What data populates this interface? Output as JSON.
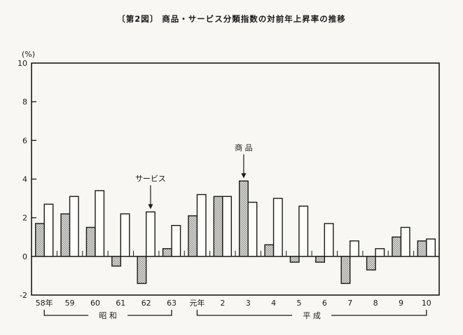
{
  "chart_data": {
    "type": "bar",
    "title": "〔第2図〕  商品・サービス分類指数の対前年上昇率の推移",
    "unit_label": "(%)",
    "ylim": [
      -2,
      10
    ],
    "y_ticks": [
      10,
      8,
      6,
      4,
      2,
      0,
      -2
    ],
    "grid": false,
    "categories": [
      "58年",
      "59",
      "60",
      "61",
      "62",
      "63",
      "元年",
      "2",
      "3",
      "4",
      "5",
      "6",
      "7",
      "8",
      "9",
      "10"
    ],
    "era_groups": [
      {
        "label": "昭 和",
        "from": "58年",
        "to": "63"
      },
      {
        "label": "平 成",
        "from": "元年",
        "to": "10"
      }
    ],
    "series": [
      {
        "name": "商品",
        "pattern": "hatched",
        "values": [
          1.7,
          2.2,
          1.5,
          -0.5,
          -1.4,
          0.4,
          2.1,
          3.1,
          3.9,
          0.6,
          -0.3,
          -0.3,
          -1.4,
          -0.7,
          1.0,
          0.8
        ]
      },
      {
        "name": "サービス",
        "pattern": "white",
        "values": [
          2.7,
          3.1,
          3.4,
          2.2,
          2.3,
          1.6,
          3.2,
          3.1,
          2.8,
          3.0,
          2.6,
          1.7,
          0.8,
          0.4,
          1.5,
          0.9
        ]
      }
    ],
    "annotations": [
      {
        "text": "サービス",
        "series": "サービス",
        "category": "62"
      },
      {
        "text": "商 品",
        "series": "商品",
        "category": "3"
      }
    ],
    "colors": {
      "axis": "#1a1a1a",
      "paper": "#f8f7f3",
      "bar_white": "#fdfdfa",
      "hatch_fg": "#8f8f8d",
      "hatch_bg": "#ebebe8"
    }
  }
}
